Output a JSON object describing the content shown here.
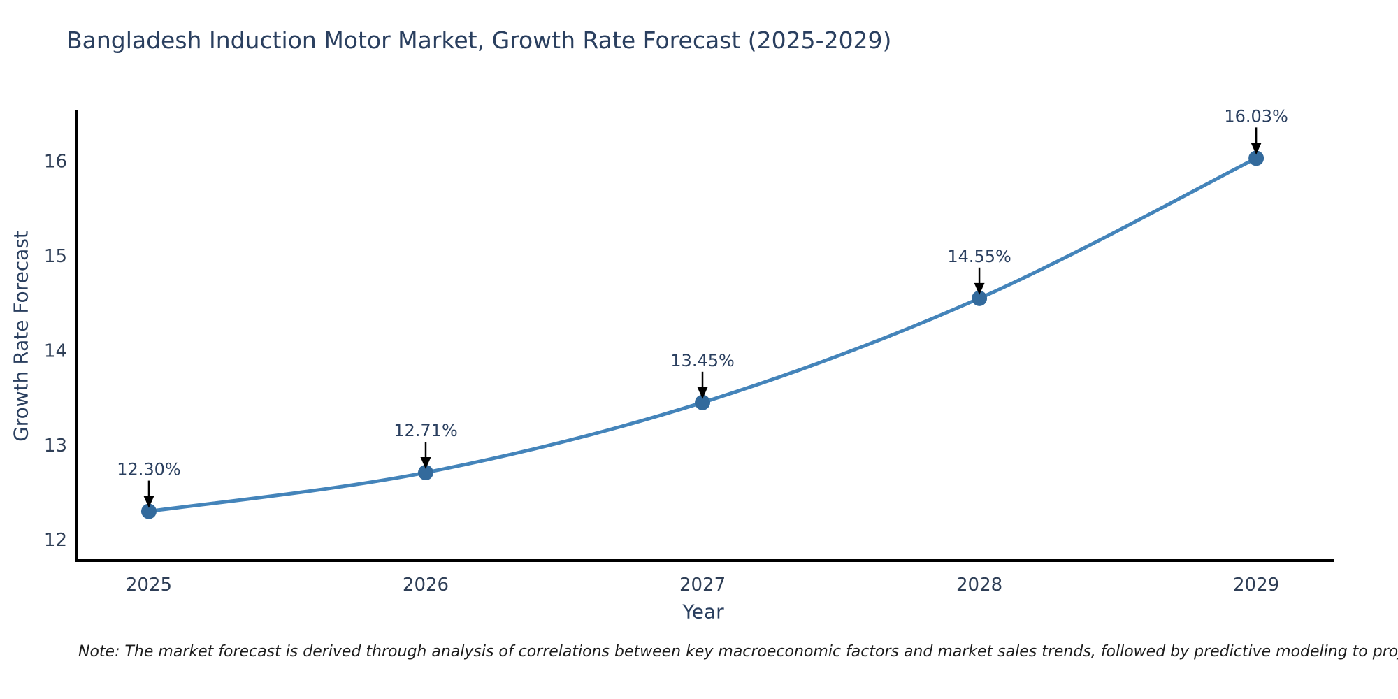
{
  "title": "Bangladesh Induction Motor Market, Growth Rate Forecast (2025-2029)",
  "footnote": "Note: The market forecast is derived through analysis of correlations between key macroeconomic factors and market sales trends, followed by predictive modeling to project future sales",
  "chart_data": {
    "type": "line",
    "title": "Bangladesh Induction Motor Market, Growth Rate Forecast (2025-2029)",
    "xlabel": "Year",
    "ylabel": "Growth Rate Forecast",
    "x": [
      2025,
      2026,
      2027,
      2028,
      2029
    ],
    "y": [
      12.3,
      12.71,
      13.45,
      14.55,
      16.03
    ],
    "point_labels": [
      "12.30%",
      "12.71%",
      "13.45%",
      "14.55%",
      "16.03%"
    ],
    "xticks": [
      "2025",
      "2026",
      "2027",
      "2028",
      "2029"
    ],
    "yticks": [
      12,
      13,
      14,
      15,
      16
    ],
    "xlim": [
      2024.74,
      2029.28
    ],
    "ylim": [
      11.78,
      16.52
    ],
    "grid": false,
    "legend": "none",
    "line_color": "#4484ba",
    "marker_color": "#336a9c",
    "arrow_color": "#000000",
    "spine_color": "#000000",
    "tick_color": "#2e3e56",
    "annotation_color": "#2a3f5f"
  }
}
